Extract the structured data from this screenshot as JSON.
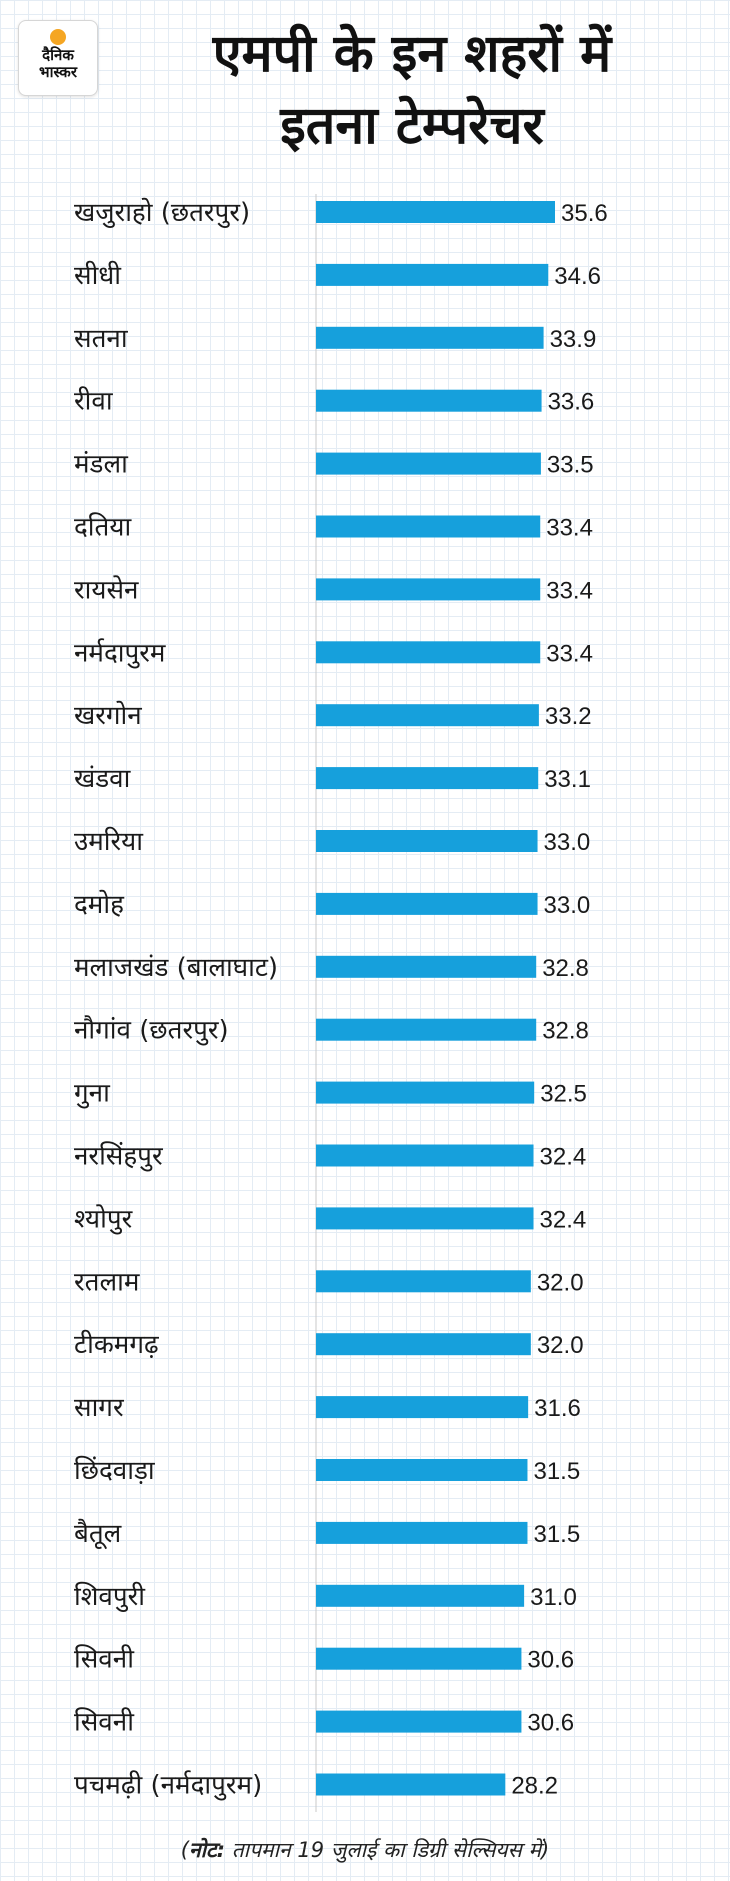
{
  "logo": {
    "line1": "दैनिक",
    "line2": "भास्कर"
  },
  "title": {
    "line1": "एमपी के इन शहरों में",
    "line2": "इतना टेम्परेचर"
  },
  "footnote": {
    "label": "नोट:",
    "text": "तापमान 19 जुलाई का डिग्री सेल्सियस में"
  },
  "colors": {
    "bar": "#16a0dc",
    "axis": "#c8c8c8",
    "text": "#1a1a1a"
  },
  "chart_data": {
    "type": "bar",
    "orientation": "horizontal",
    "title": "एमपी के इन शहरों में इतना टेम्परेचर",
    "xlabel": "",
    "ylabel": "",
    "xlim": [
      0,
      35.6
    ],
    "categories": [
      "खजुराहो (छतरपुर)",
      "सीधी",
      "सतना",
      "रीवा",
      "मंडला",
      "दतिया",
      "रायसेन",
      "नर्मदापुरम",
      "खरगोन",
      "खंडवा",
      "उमरिया",
      "दमोह",
      "मलाजखंड (बालाघाट)",
      "नौगांव (छतरपुर)",
      "गुना",
      "नरसिंहपुर",
      "श्योपुर",
      "रतलाम",
      "टीकमगढ़",
      "सागर",
      "छिंदवाड़ा",
      "बैतूल",
      "शिवपुरी",
      "सिवनी",
      "सिवनी",
      "पचमढ़ी (नर्मदापुरम)"
    ],
    "values": [
      35.6,
      34.6,
      33.9,
      33.6,
      33.5,
      33.4,
      33.4,
      33.4,
      33.2,
      33.1,
      33.0,
      33.0,
      32.8,
      32.8,
      32.5,
      32.4,
      32.4,
      32.0,
      32.0,
      31.6,
      31.5,
      31.5,
      31.0,
      30.6,
      30.6,
      28.2
    ],
    "value_labels": [
      "35.6",
      "34.6",
      "33.9",
      "33.6",
      "33.5",
      "33.4",
      "33.4",
      "33.4",
      "33.2",
      "33.1",
      "33.0",
      "33.0",
      "32.8",
      "32.8",
      "32.5",
      "32.4",
      "32.4",
      "32.0",
      "32.0",
      "31.6",
      "31.5",
      "31.5",
      "31.0",
      "30.6",
      "30.6",
      "28.2"
    ]
  }
}
